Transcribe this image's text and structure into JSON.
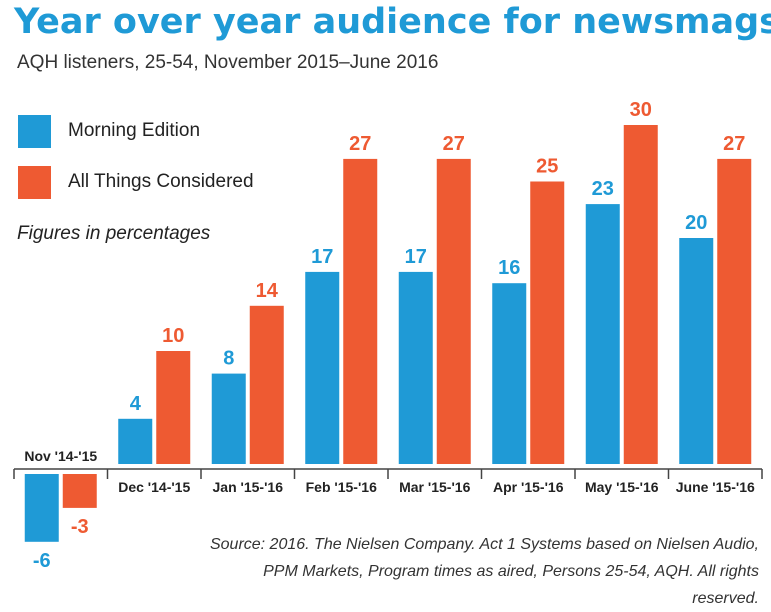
{
  "title": "Year over year audience for newsmags",
  "subtitle": "AQH listeners, 25-54, November 2015–June 2016",
  "note": "Figures in percentages",
  "source": "Source: 2016. The Nielsen Company. Act 1 Systems based on Nielsen Audio, PPM Markets, Program times as aired, Persons 25-54, AQH. All rights reserved.",
  "colors": {
    "morning": "#1f9ad6",
    "atc": "#ee5a32",
    "title": "#1f9ad6"
  },
  "chart_data": {
    "type": "bar",
    "categories": [
      "Nov '14-'15",
      "Dec '14-'15",
      "Jan '15-'16",
      "Feb '15-'16",
      "Mar '15-'16",
      "Apr '15-'16",
      "May '15-'16",
      "June '15-'16"
    ],
    "series": [
      {
        "name": "Morning Edition",
        "values": [
          -6,
          4,
          8,
          17,
          17,
          16,
          23,
          20
        ]
      },
      {
        "name": "All Things Considered",
        "values": [
          -3,
          10,
          14,
          27,
          27,
          25,
          30,
          27
        ]
      }
    ],
    "ylim": [
      -8,
      34
    ],
    "grid": false,
    "legend": "top-left"
  }
}
